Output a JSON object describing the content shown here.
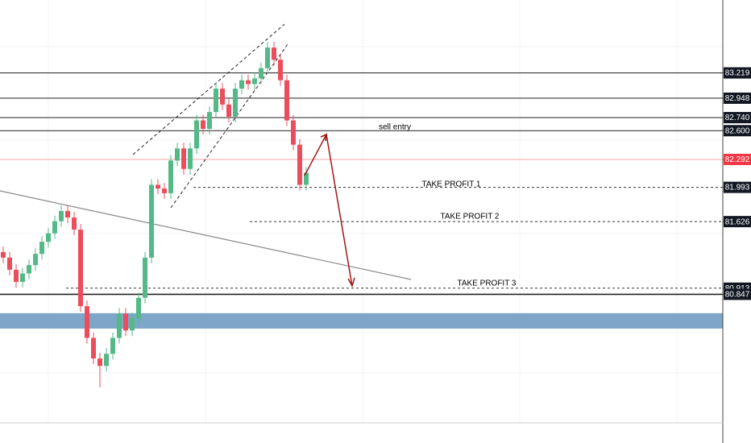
{
  "chart_data": {
    "type": "candlestick",
    "open": [
      81.3,
      81.24,
      81.11,
      80.98,
      81.07,
      81.16,
      81.28,
      81.41,
      81.5,
      81.63,
      81.74,
      81.67,
      81.54,
      80.72,
      80.38,
      80.16,
      80.08,
      80.21,
      80.38,
      80.64,
      80.46,
      80.59,
      80.81,
      81.24,
      82.02,
      81.98,
      81.93,
      82.28,
      82.41,
      82.19,
      82.41,
      82.71,
      82.62,
      82.8,
      83.05,
      82.88,
      82.75,
      83.05,
      83.14,
      83.1,
      83.16,
      83.27,
      83.49,
      83.36,
      83.14,
      82.71,
      82.45,
      82.02
    ],
    "high": [
      81.36,
      81.3,
      81.17,
      81.13,
      81.22,
      81.34,
      81.47,
      81.56,
      81.69,
      81.8,
      81.8,
      81.73,
      81.6,
      80.78,
      80.44,
      80.22,
      80.27,
      80.44,
      80.7,
      80.7,
      80.65,
      80.87,
      81.3,
      82.08,
      82.08,
      82.04,
      82.34,
      82.47,
      82.47,
      82.47,
      82.77,
      82.77,
      82.86,
      83.11,
      83.11,
      82.94,
      83.11,
      83.2,
      83.2,
      83.22,
      83.33,
      83.55,
      83.55,
      83.42,
      83.2,
      82.77,
      82.51,
      82.21
    ],
    "low": [
      81.18,
      81.05,
      80.92,
      80.92,
      81.01,
      81.1,
      81.22,
      81.35,
      81.44,
      81.57,
      81.61,
      81.48,
      80.66,
      80.32,
      80.1,
      79.85,
      80.02,
      80.15,
      80.32,
      80.4,
      80.4,
      80.53,
      80.75,
      81.18,
      81.92,
      81.87,
      81.87,
      82.22,
      82.13,
      82.13,
      82.35,
      82.56,
      82.56,
      82.74,
      82.82,
      82.69,
      82.69,
      82.99,
      83.04,
      83.04,
      83.1,
      83.21,
      83.3,
      83.08,
      82.65,
      82.39,
      81.96,
      81.96
    ],
    "close": [
      81.24,
      81.11,
      80.98,
      81.07,
      81.16,
      81.28,
      81.41,
      81.5,
      81.63,
      81.74,
      81.67,
      81.54,
      80.72,
      80.38,
      80.16,
      80.08,
      80.21,
      80.38,
      80.64,
      80.46,
      80.59,
      80.81,
      81.24,
      82.02,
      81.98,
      81.93,
      82.28,
      82.41,
      82.19,
      82.41,
      82.71,
      82.62,
      82.8,
      83.05,
      82.88,
      82.75,
      83.05,
      83.14,
      83.1,
      83.16,
      83.27,
      83.49,
      83.36,
      83.14,
      82.71,
      82.45,
      82.02,
      82.15
    ],
    "up_color": "#53b987",
    "down_color": "#eb4d5c",
    "ylim": [
      79.47,
      84.0
    ],
    "yticks": [
      83.219,
      82.948,
      {
        "value": 82.74,
        "label": "82.740"
      },
      {
        "value": 82.6,
        "label": "82.600"
      },
      82.292,
      81.993,
      81.626,
      80.913,
      80.847
    ],
    "tick_styles": [
      "solid",
      "solid",
      "solid",
      "solid",
      "current",
      "dashed",
      "dashed",
      "dashed",
      "solid"
    ],
    "zone": [
      80.48,
      80.645
    ],
    "zone_color": "#7ea6c8",
    "annotations": [
      "sell entry",
      "TAKE PROFIT 1",
      "TAKE PROFIT 2",
      "TAKE PROFIT 3"
    ]
  }
}
